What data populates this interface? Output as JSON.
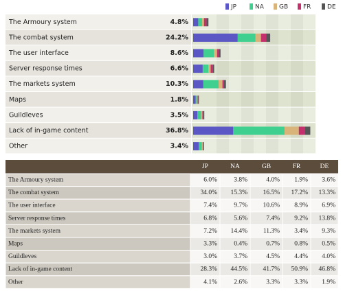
{
  "chart_data": {
    "type": "bar",
    "categories": [
      "The Armoury system",
      "The combat system",
      "The user interface",
      "Server response times",
      "The markets system",
      "Maps",
      "Guildleves",
      "Lack of in-game content",
      "Other"
    ],
    "series": [
      {
        "name": "JP",
        "color": "#5b57c4",
        "values": [
          1.6,
          14.0,
          3.3,
          3.0,
          3.2,
          0.8,
          1.3,
          12.6,
          1.8
        ]
      },
      {
        "name": "NA",
        "color": "#3fd08f",
        "values": [
          1.2,
          5.6,
          3.2,
          1.8,
          4.8,
          0.4,
          1.2,
          16.1,
          0.9
        ]
      },
      {
        "name": "GB",
        "color": "#d8b47a",
        "values": [
          0.6,
          1.7,
          1.0,
          0.7,
          1.2,
          0.2,
          0.4,
          4.5,
          0.3
        ]
      },
      {
        "name": "FR",
        "color": "#c4306c",
        "values": [
          0.8,
          1.6,
          0.6,
          0.6,
          0.5,
          0.2,
          0.3,
          1.9,
          0.2
        ]
      },
      {
        "name": "DE",
        "color": "#555555",
        "values": [
          0.6,
          1.3,
          0.5,
          0.5,
          0.6,
          0.2,
          0.3,
          1.7,
          0.2
        ]
      }
    ],
    "totals": {
      "values": [
        4.8,
        24.2,
        8.6,
        6.6,
        10.3,
        1.8,
        3.5,
        36.8,
        3.4
      ],
      "value_labels": [
        "4.8%",
        "24.2%",
        "8.6%",
        "6.6%",
        "10.3%",
        "1.8%",
        "3.5%",
        "36.8%",
        "3.4%"
      ]
    },
    "highlight_index": 7,
    "highlight_color": "#a0203a",
    "xlim": [
      0,
      38
    ]
  },
  "table": {
    "header": [
      "JP",
      "NA",
      "GB",
      "FR",
      "DE"
    ],
    "rows": [
      [
        "The Armoury system",
        "6.0%",
        "3.8%",
        "4.0%",
        "1.9%",
        "3.6%"
      ],
      [
        "The combat system",
        "34.0%",
        "15.3%",
        "16.5%",
        "17.2%",
        "13.3%"
      ],
      [
        "The user interface",
        "7.4%",
        "9.7%",
        "10.6%",
        "8.9%",
        "6.9%"
      ],
      [
        "Server response times",
        "6.8%",
        "5.6%",
        "7.4%",
        "9.2%",
        "13.8%"
      ],
      [
        "The markets system",
        "7.2%",
        "14.4%",
        "11.3%",
        "3.4%",
        "9.3%"
      ],
      [
        "Maps",
        "3.3%",
        "0.4%",
        "0.7%",
        "0.8%",
        "0.5%"
      ],
      [
        "Guildleves",
        "3.0%",
        "3.7%",
        "4.5%",
        "4.4%",
        "4.0%"
      ],
      [
        "Lack of in-game content",
        "28.3%",
        "44.5%",
        "41.7%",
        "50.9%",
        "46.8%"
      ],
      [
        "Other",
        "4.1%",
        "2.6%",
        "3.3%",
        "3.3%",
        "1.9%"
      ]
    ]
  }
}
